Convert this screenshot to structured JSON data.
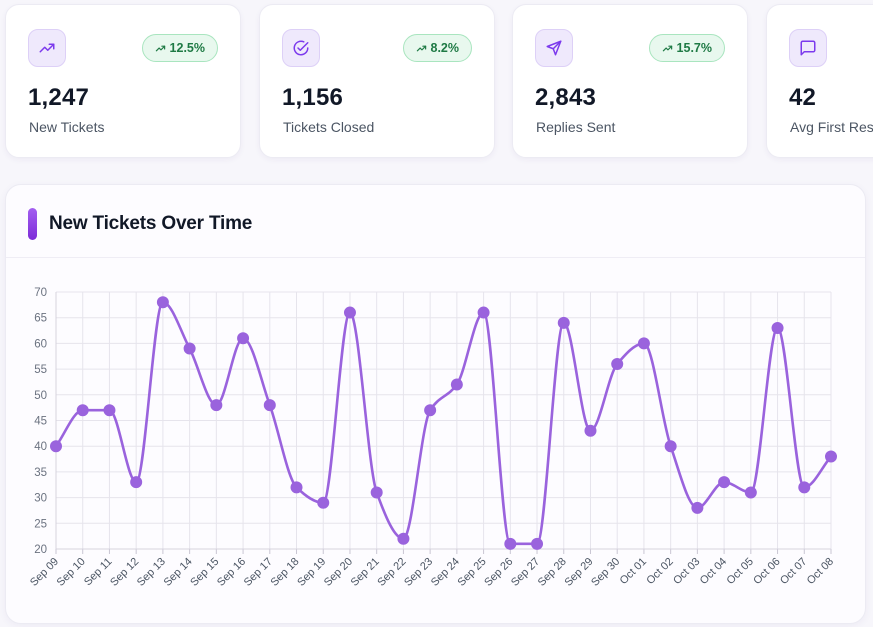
{
  "colors": {
    "accent": "#9a63dd",
    "badge_bg": "#e8f8ee",
    "badge_text": "#1f7a45"
  },
  "stats": [
    {
      "icon": "trending-up-icon",
      "change": "12.5%",
      "value": "1,247",
      "label": "New Tickets"
    },
    {
      "icon": "check-circle-icon",
      "change": "8.2%",
      "value": "1,156",
      "label": "Tickets Closed"
    },
    {
      "icon": "send-icon",
      "change": "15.7%",
      "value": "2,843",
      "label": "Replies Sent"
    },
    {
      "icon": "message-square-icon",
      "value": "42",
      "label": "Avg First Res"
    }
  ],
  "chart_panel": {
    "title": "New Tickets Over Time"
  },
  "chart_data": {
    "type": "line",
    "title": "New Tickets Over Time",
    "xlabel": "",
    "ylabel": "",
    "ylim": [
      20,
      70
    ],
    "yticks": [
      20,
      25,
      30,
      35,
      40,
      45,
      50,
      55,
      60,
      65,
      70
    ],
    "grid": true,
    "categories": [
      "Sep 09",
      "Sep 10",
      "Sep 11",
      "Sep 12",
      "Sep 13",
      "Sep 14",
      "Sep 15",
      "Sep 16",
      "Sep 17",
      "Sep 18",
      "Sep 19",
      "Sep 20",
      "Sep 21",
      "Sep 22",
      "Sep 23",
      "Sep 24",
      "Sep 25",
      "Sep 26",
      "Sep 27",
      "Sep 28",
      "Sep 29",
      "Sep 30",
      "Oct 01",
      "Oct 02",
      "Oct 03",
      "Oct 04",
      "Oct 05",
      "Oct 06",
      "Oct 07",
      "Oct 08"
    ],
    "series": [
      {
        "name": "New Tickets",
        "values": [
          40,
          47,
          47,
          33,
          68,
          59,
          48,
          61,
          48,
          32,
          29,
          66,
          31,
          22,
          47,
          52,
          66,
          21,
          21,
          64,
          43,
          56,
          60,
          40,
          28,
          33,
          31,
          63,
          32,
          38
        ]
      }
    ]
  }
}
